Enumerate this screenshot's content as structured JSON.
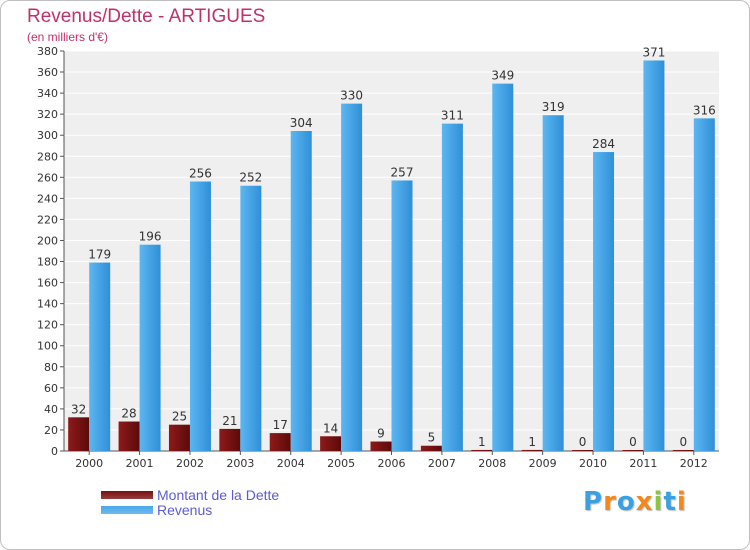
{
  "header": {
    "title": "Revenus/Dette - ARTIGUES",
    "subtitle": "(en milliers d'€)"
  },
  "chart_data": {
    "type": "bar",
    "title": "Revenus/Dette - ARTIGUES",
    "subtitle": "(en milliers d'€)",
    "categories": [
      "2000",
      "2001",
      "2002",
      "2003",
      "2004",
      "2005",
      "2006",
      "2007",
      "2008",
      "2009",
      "2010",
      "2011",
      "2012"
    ],
    "series": [
      {
        "name": "Montant de la Dette",
        "color": "#7a0f0f",
        "values": [
          32,
          28,
          25,
          21,
          17,
          14,
          9,
          5,
          1,
          1,
          0,
          0,
          0
        ]
      },
      {
        "name": "Revenus",
        "color": "#4aa8ea",
        "values": [
          179,
          196,
          256,
          252,
          304,
          330,
          257,
          311,
          349,
          319,
          284,
          371,
          316
        ]
      }
    ],
    "ylim": [
      0,
      380
    ],
    "ytick_step": 20,
    "grid": true,
    "legend_position": "bottom-left"
  },
  "legend": {
    "items": [
      {
        "label": "Montant de la Dette",
        "color": "#7a0f0f"
      },
      {
        "label": "Revenus",
        "color": "#4aa8ea"
      }
    ]
  },
  "logo": {
    "text": "Proxiti",
    "letters": [
      "P",
      "r",
      "o",
      "x",
      "i",
      "t",
      "i"
    ],
    "colors": [
      "#3aa0e0",
      "#f08a1c",
      "#3aa0e0",
      "#f08a1c",
      "#8cc63f",
      "#3aa0e0",
      "#f08a1c"
    ]
  }
}
